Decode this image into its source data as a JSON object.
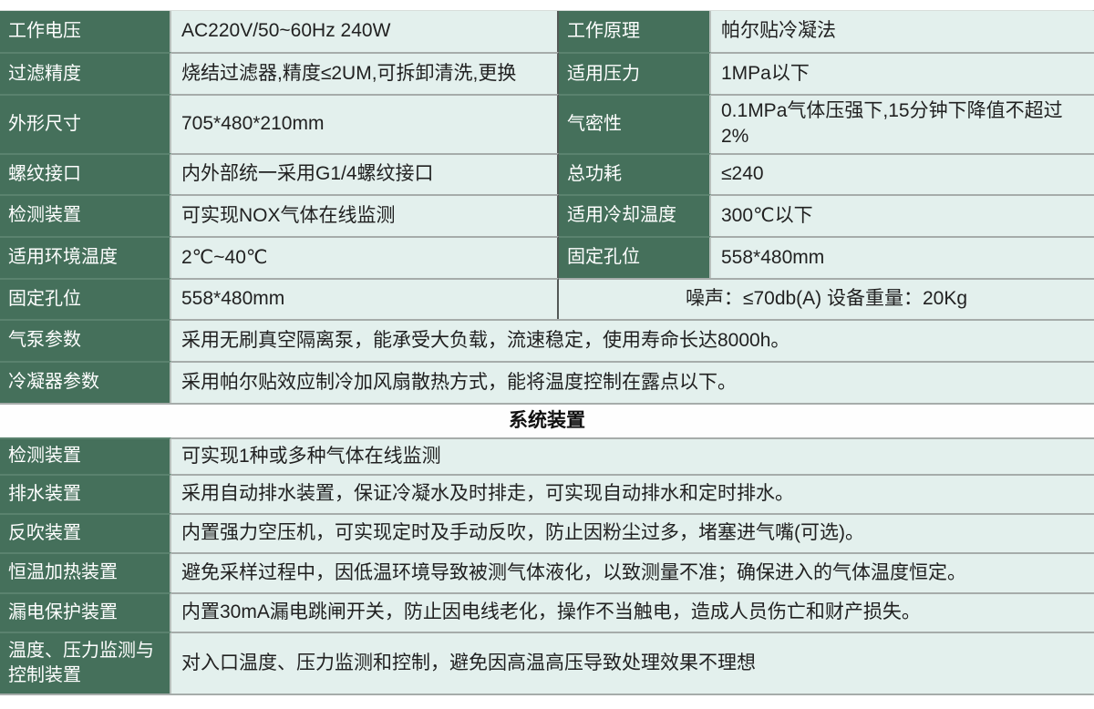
{
  "colors": {
    "label_bg": "#45705b",
    "value_bg": "#e3f0ed",
    "grid_line": "#a6acaa",
    "mid_divider": "#535856",
    "label_text": "#ffffff",
    "value_text": "#212121",
    "header_bg": "#fefefe"
  },
  "top": {
    "rows": [
      {
        "label_left": "工作电压",
        "value_left": "AC220V/50~60Hz 240W",
        "label_right": "工作原理",
        "value_right": "帕尔贴冷凝法"
      },
      {
        "label_left": "过滤精度",
        "value_left": "烧结过滤器,精度≤2UM,可拆卸清洗,更换",
        "label_right": "适用压力",
        "value_right": "1MPa以下"
      },
      {
        "label_left": "外形尺寸",
        "value_left": "705*480*210mm",
        "label_right": "气密性",
        "value_right": "0.1MPa气体压强下,15分钟下降值不超过2%"
      },
      {
        "label_left": "螺纹接口",
        "value_left": "内外部统一采用G1/4螺纹接口",
        "label_right": "总功耗",
        "value_right": "≤240"
      },
      {
        "label_left": "检测装置",
        "value_left": "可实现NOX气体在线监测",
        "label_right": "适用冷却温度",
        "value_right": "300℃以下"
      },
      {
        "label_left": "适用环境温度",
        "value_left": "2℃~40℃",
        "label_right": "固定孔位",
        "value_right": "558*480mm"
      }
    ],
    "mixed": {
      "label": "固定孔位",
      "value": "558*480mm",
      "note": "噪声：≤70db(A)  设备重量：20Kg"
    },
    "full": [
      {
        "label": "气泵参数",
        "value": "采用无刷真空隔离泵，能承受大负载，流速稳定，使用寿命长达8000h。"
      },
      {
        "label": "冷凝器参数",
        "value": "采用帕尔贴效应制冷加风扇散热方式，能将温度控制在露点以下。"
      }
    ]
  },
  "section_header": "系统装置",
  "system": {
    "rows": [
      {
        "label": "检测装置",
        "value": "可实现1种或多种气体在线监测"
      },
      {
        "label": "排水装置",
        "value": "采用自动排水装置，保证冷凝水及时排走，可实现自动排水和定时排水。"
      },
      {
        "label": "反吹装置",
        "value": "内置强力空压机，可实现定时及手动反吹，防止因粉尘过多，堵塞进气嘴(可选)。"
      },
      {
        "label": "恒温加热装置",
        "value": "避免采样过程中，因低温环境导致被测气体液化，以致测量不准；确保进入的气体温度恒定。"
      },
      {
        "label": "漏电保护装置",
        "value": "内置30mA漏电跳闸开关，防止因电线老化，操作不当触电，造成人员伤亡和财产损失。"
      },
      {
        "label": "温度、压力监测与控制装置",
        "value": "对入口温度、压力监测和控制，避免因高温高压导致处理效果不理想"
      }
    ]
  }
}
